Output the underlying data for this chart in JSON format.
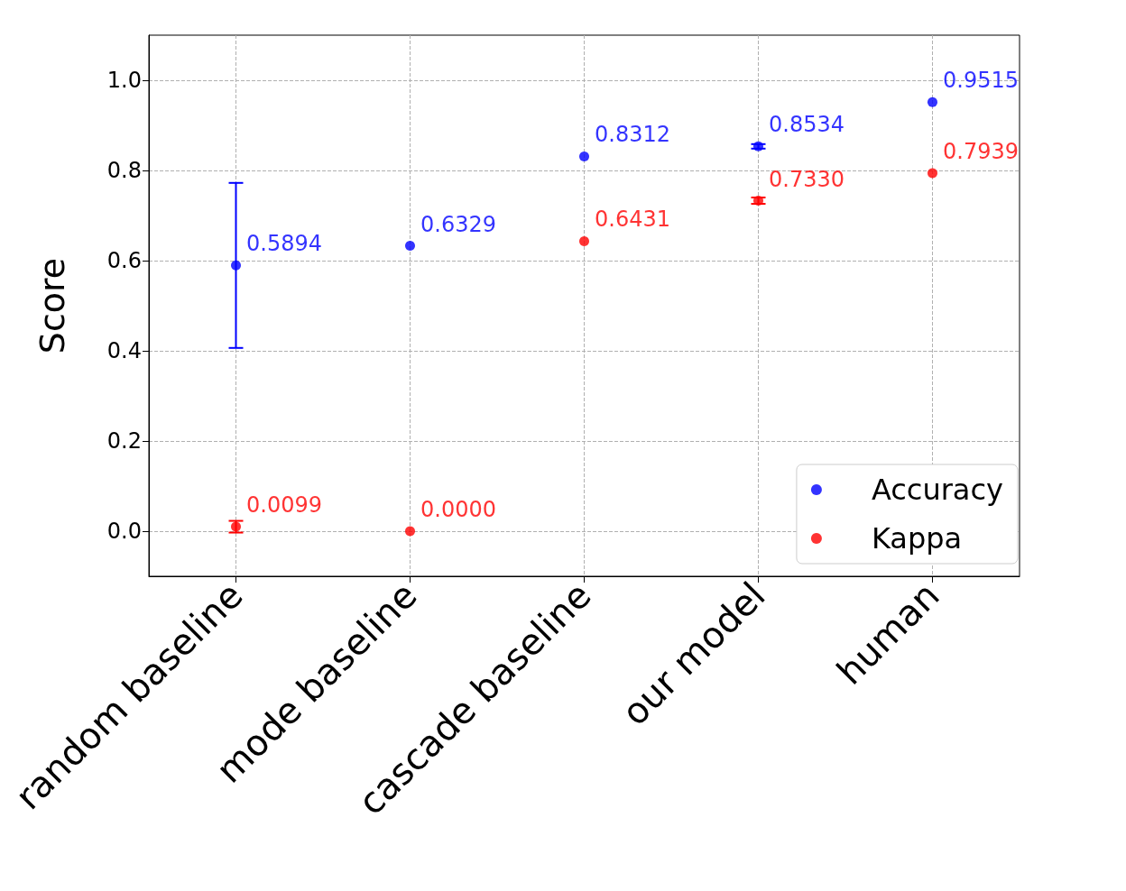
{
  "chart_data": {
    "type": "scatter",
    "ylabel": "Score",
    "categories": [
      "random baseline",
      "mode baseline",
      "cascade baseline",
      "our model",
      "human"
    ],
    "series": [
      {
        "name": "Accuracy",
        "color": "#0000ff",
        "values": [
          0.5894,
          0.6329,
          0.8312,
          0.8534,
          0.9515
        ],
        "errors": [
          0.183,
          null,
          null,
          0.005,
          null
        ],
        "value_labels": [
          "0.5894",
          "0.6329",
          "0.8312",
          "0.8534",
          "0.9515"
        ]
      },
      {
        "name": "Kappa",
        "color": "#ff0000",
        "values": [
          0.0099,
          0.0,
          0.6431,
          0.733,
          0.7939
        ],
        "errors": [
          0.013,
          null,
          null,
          0.007,
          null
        ],
        "value_labels": [
          "0.0099",
          "0.0000",
          "0.6431",
          "0.7330",
          "0.7939"
        ]
      }
    ],
    "ylim": [
      -0.1,
      1.1
    ],
    "yticks": [
      {
        "value": 0,
        "label": "0.0"
      },
      {
        "value": 0.2,
        "label": "0.2"
      },
      {
        "value": 0.4,
        "label": "0.4"
      },
      {
        "value": 0.6,
        "label": "0.6"
      },
      {
        "value": 0.8,
        "label": "0.8"
      },
      {
        "value": 1,
        "label": "1.0"
      }
    ],
    "grid": true,
    "legend": "bottom right",
    "marker": "circle"
  }
}
